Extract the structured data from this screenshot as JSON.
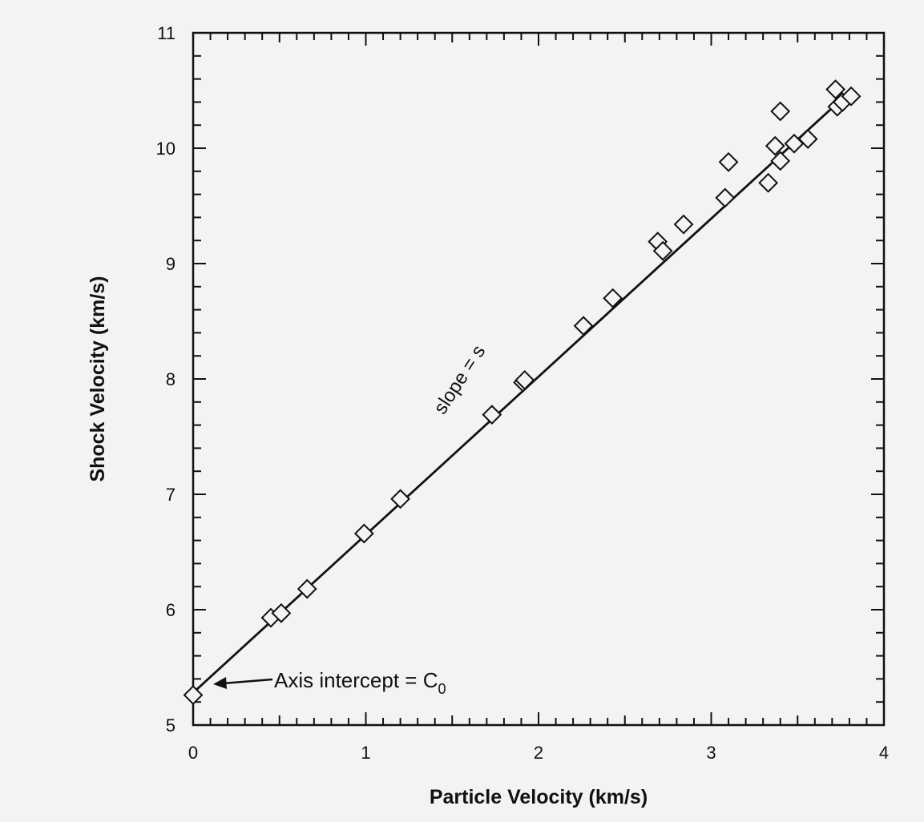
{
  "chart_data": {
    "type": "scatter",
    "xlabel": "Particle Velocity (km/s)",
    "ylabel": "Shock Velocity (km/s)",
    "xlim": [
      0,
      4
    ],
    "ylim": [
      5,
      11
    ],
    "x_ticks": [
      "0",
      "1",
      "2",
      "3",
      "4"
    ],
    "y_ticks": [
      "5",
      "6",
      "7",
      "8",
      "9",
      "10",
      "11"
    ],
    "grid": false,
    "legend": "none",
    "series": [
      {
        "marker": "diamond",
        "points": [
          [
            0.0,
            5.26
          ],
          [
            0.45,
            5.93
          ],
          [
            0.51,
            5.97
          ],
          [
            0.66,
            6.18
          ],
          [
            0.99,
            6.66
          ],
          [
            1.2,
            6.96
          ],
          [
            1.73,
            7.69
          ],
          [
            1.91,
            7.97
          ],
          [
            1.92,
            7.99
          ],
          [
            2.26,
            8.46
          ],
          [
            2.43,
            8.7
          ],
          [
            2.69,
            9.19
          ],
          [
            2.72,
            9.11
          ],
          [
            2.84,
            9.34
          ],
          [
            3.08,
            9.57
          ],
          [
            3.1,
            9.88
          ],
          [
            3.33,
            9.7
          ],
          [
            3.37,
            10.02
          ],
          [
            3.4,
            9.89
          ],
          [
            3.4,
            10.32
          ],
          [
            3.48,
            10.04
          ],
          [
            3.56,
            10.08
          ],
          [
            3.72,
            10.51
          ],
          [
            3.73,
            10.36
          ],
          [
            3.76,
            10.4
          ],
          [
            3.81,
            10.45
          ]
        ]
      }
    ],
    "fit_line": {
      "slope": 1.37,
      "intercept": 5.28,
      "x_range": [
        0,
        3.82
      ]
    },
    "annotations": {
      "slope_label": "slope = s",
      "intercept_label": "Axis intercept = C",
      "intercept_subscript": "0"
    },
    "colors": {
      "ink": "#111111",
      "paper": "#f3f3f1"
    }
  }
}
